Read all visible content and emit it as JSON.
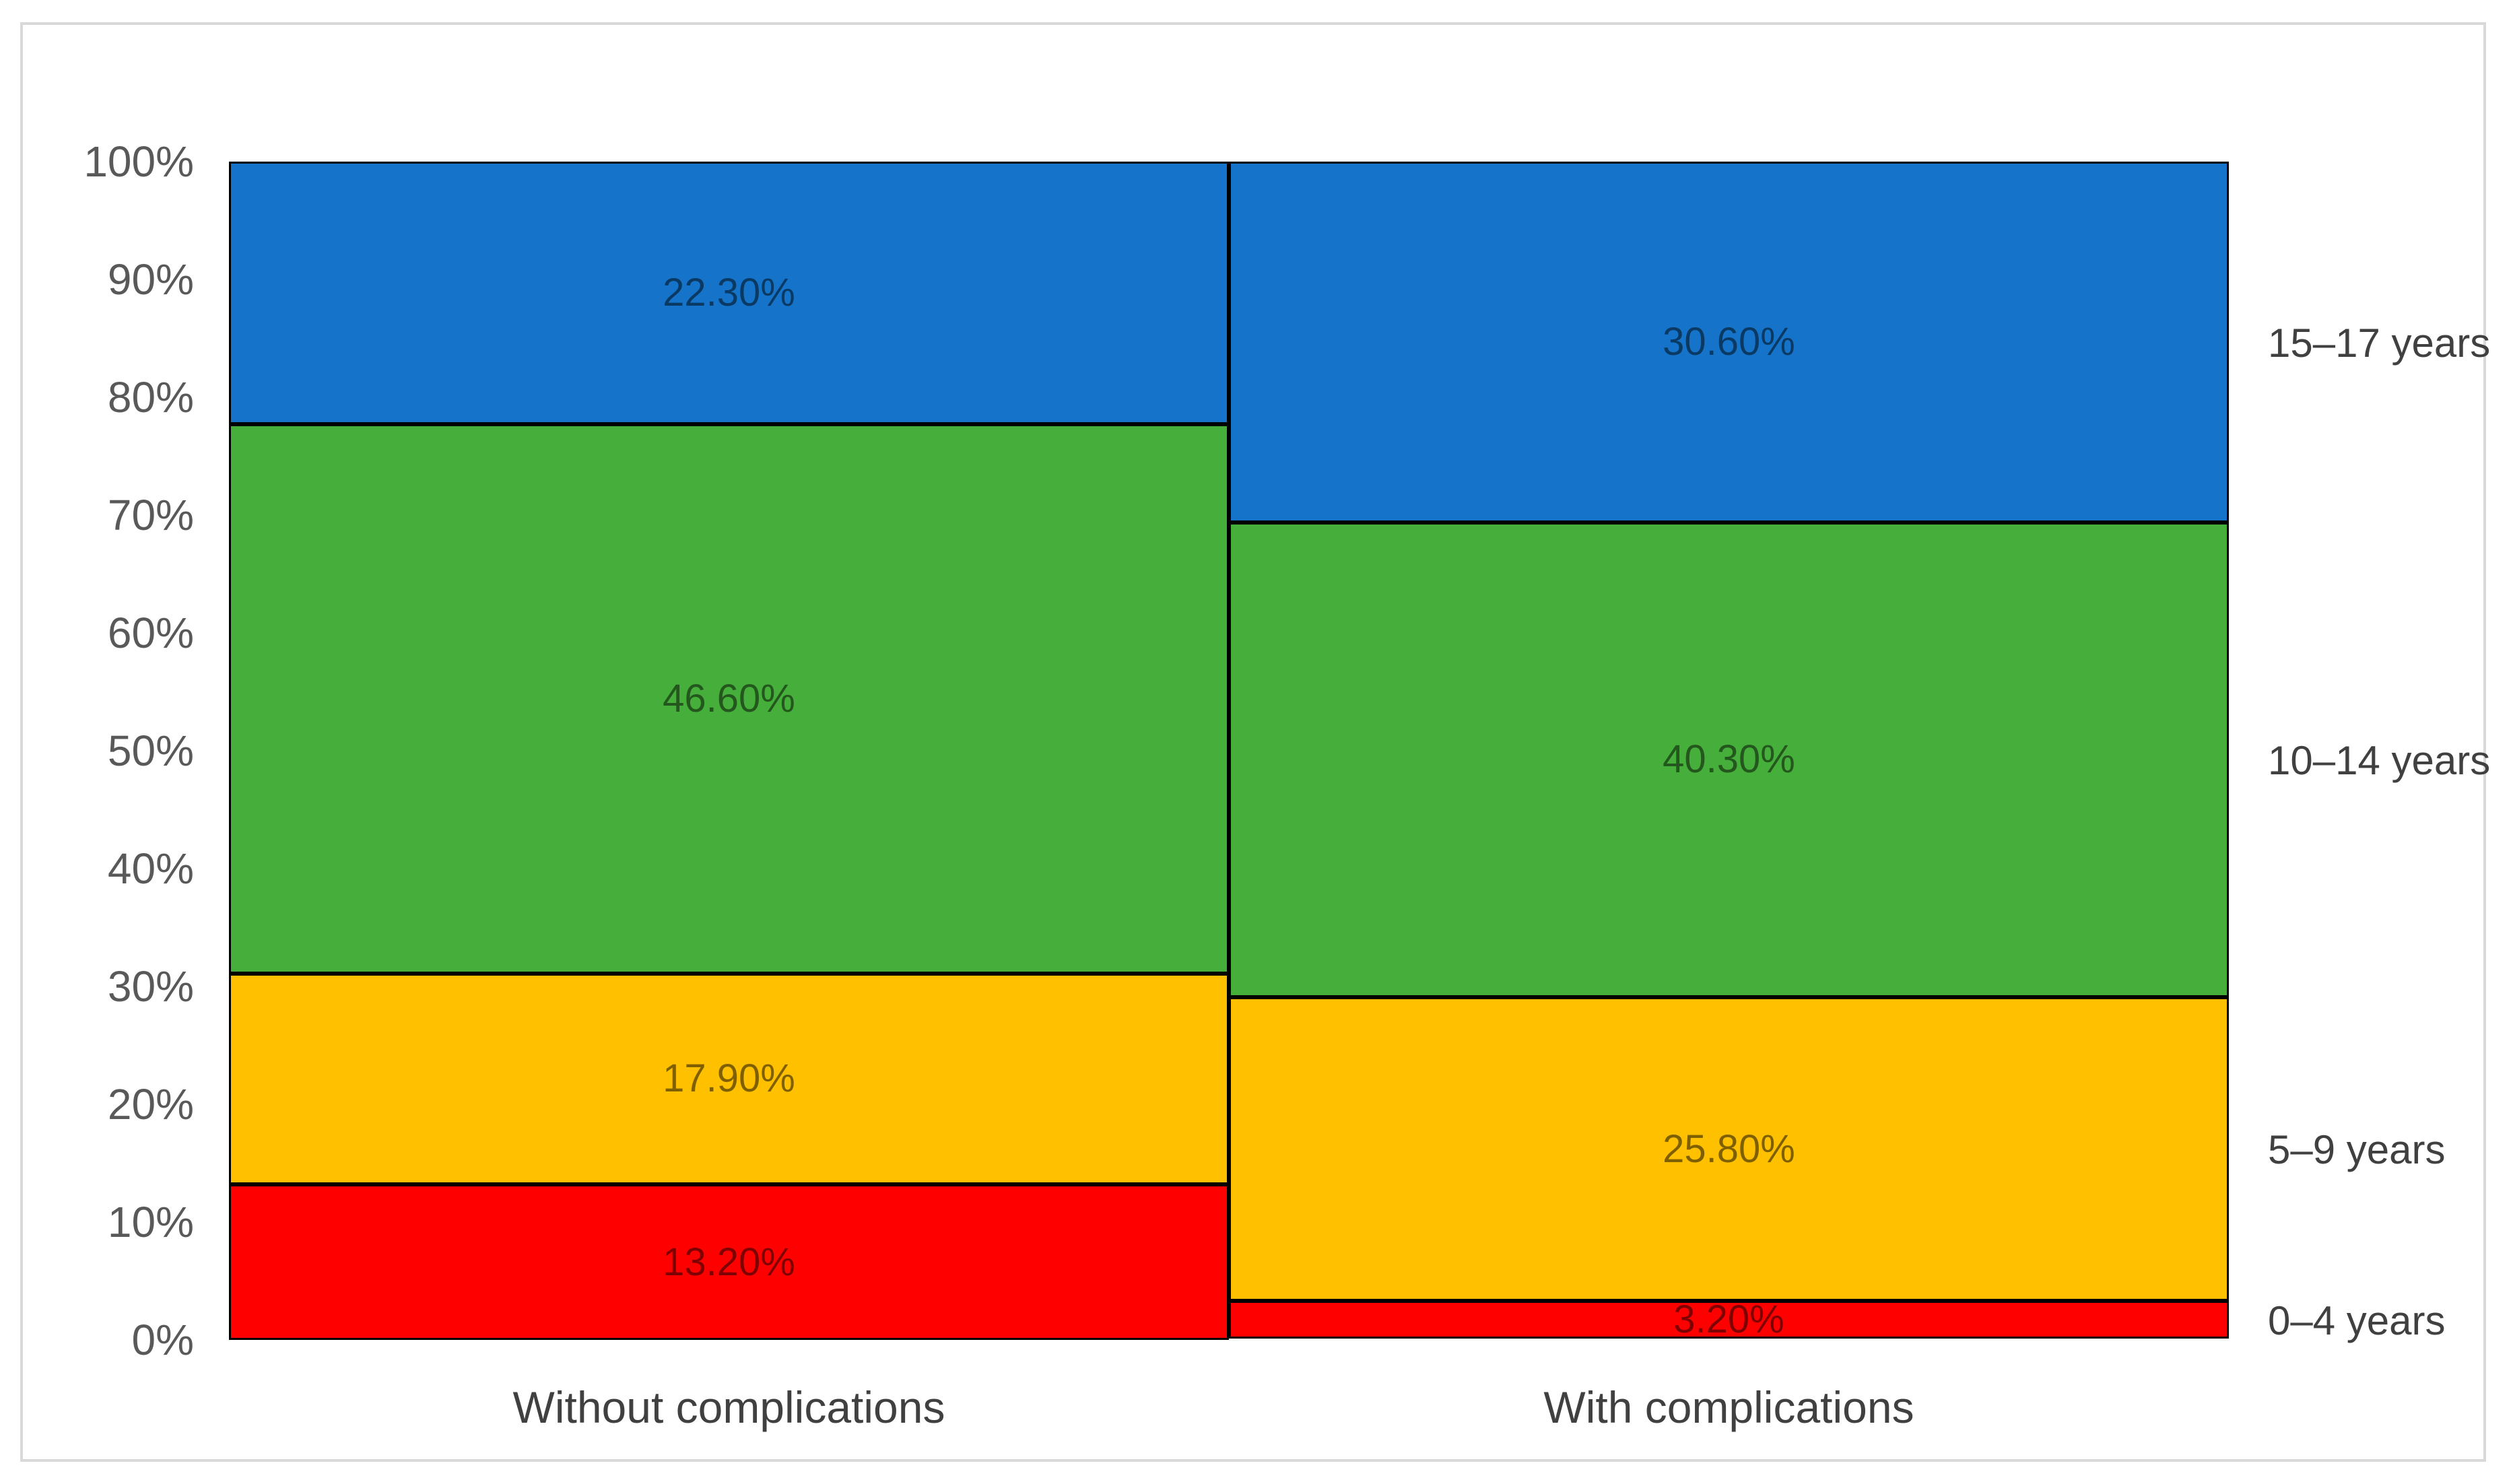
{
  "chart_data": {
    "type": "bar",
    "subtype": "stacked-100-column",
    "title": "",
    "xlabel": "",
    "ylabel": "",
    "ylim": [
      0,
      100
    ],
    "grid": false,
    "legend_position": "right-of-plot",
    "categories": [
      "Without complications",
      "With complications"
    ],
    "series": [
      {
        "name": "0–4 years",
        "color": "#FF0000",
        "values": [
          13.2,
          3.2
        ],
        "labels": [
          "13.20%",
          "3.20%"
        ]
      },
      {
        "name": "5–9 years",
        "color": "#FFC000",
        "values": [
          17.9,
          25.8
        ],
        "labels": [
          "17.90%",
          "25.80%"
        ]
      },
      {
        "name": "10–14 years",
        "color": "#46AE3A",
        "values": [
          46.6,
          40.3
        ],
        "labels": [
          "46.60%",
          "40.30%"
        ]
      },
      {
        "name": "15–17 years",
        "color": "#1574C9",
        "values": [
          22.3,
          30.6
        ],
        "labels": [
          "22.30%",
          "30.60%"
        ]
      }
    ],
    "y_ticks": [
      "0%",
      "10%",
      "20%",
      "30%",
      "40%",
      "50%",
      "60%",
      "70%",
      "80%",
      "90%",
      "100%"
    ]
  },
  "colors": {
    "segment_border": "#000000",
    "frame_border": "#D9D9D9",
    "tick_text": "#595959",
    "category_text": "#404040",
    "data_label_text": "rgba(0,0,0,0.5)",
    "background": "#ffffff"
  }
}
